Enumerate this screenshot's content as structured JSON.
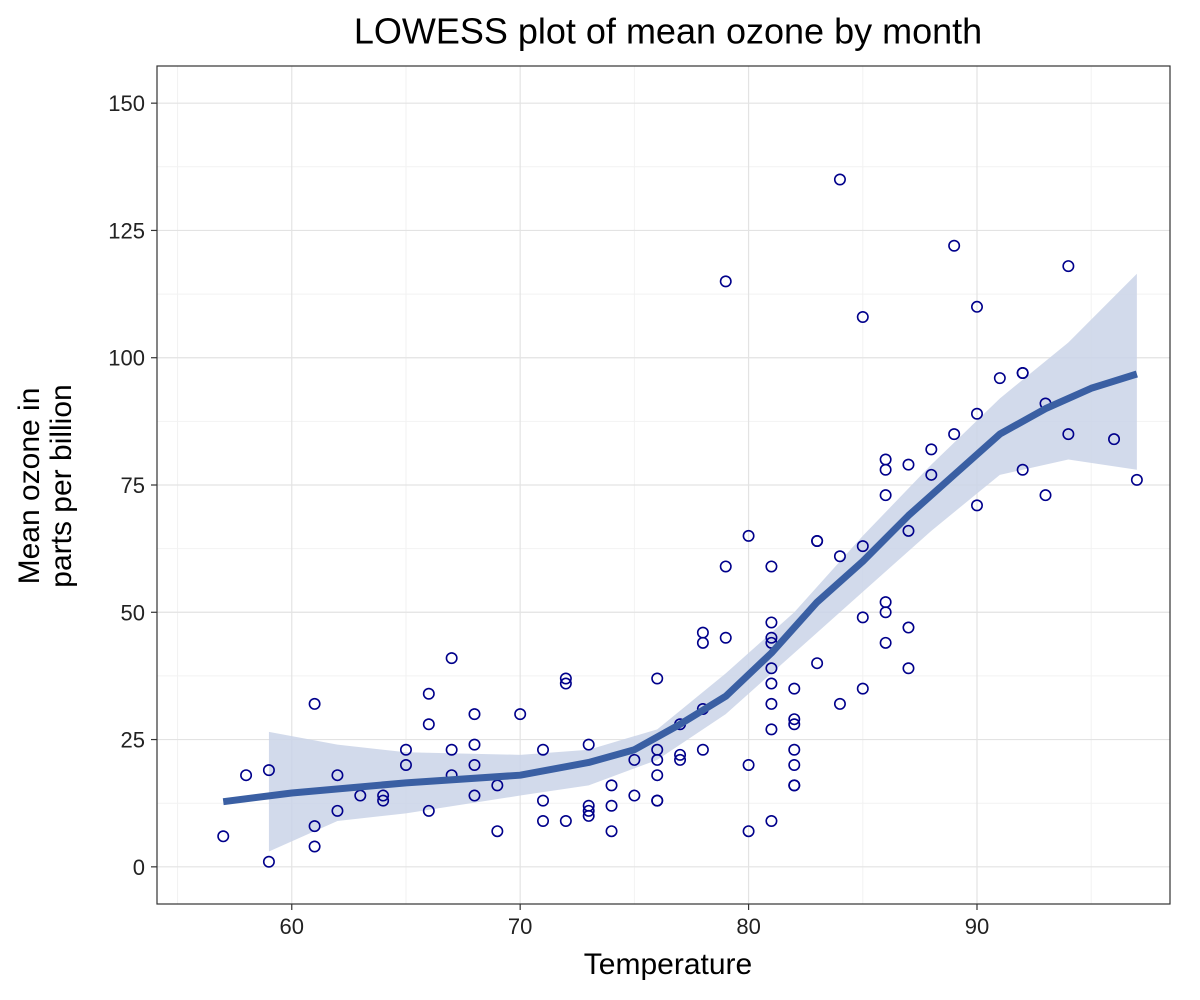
{
  "chart_data": {
    "type": "scatter",
    "title": "LOWESS plot of mean ozone by month",
    "xlabel": "Temperature",
    "ylabel": [
      "Mean ozone in",
      "parts per billion"
    ],
    "xlim": [
      54.1,
      98.45
    ],
    "ylim": [
      -7.3,
      157.3
    ],
    "xticks": [
      60,
      70,
      80,
      90
    ],
    "yticks": [
      0,
      25,
      50,
      75,
      100,
      125,
      150
    ],
    "xminorticks": [
      55,
      65,
      75,
      85,
      95
    ],
    "yminorticks": [
      12.5,
      37.5,
      62.5,
      87.5,
      112.5,
      137.5
    ],
    "grid": true,
    "color": "#00008b",
    "x": [
      57,
      58,
      59,
      59,
      61,
      61,
      61,
      62,
      62,
      63,
      64,
      64,
      65,
      65,
      66,
      66,
      66,
      67,
      67,
      67,
      68,
      68,
      68,
      68,
      69,
      69,
      70,
      71,
      71,
      71,
      72,
      72,
      72,
      73,
      73,
      73,
      73,
      74,
      74,
      74,
      75,
      75,
      76,
      76,
      76,
      76,
      76,
      76,
      77,
      77,
      77,
      78,
      78,
      78,
      78,
      79,
      79,
      79,
      80,
      80,
      80,
      81,
      81,
      81,
      81,
      81,
      81,
      81,
      81,
      81,
      82,
      82,
      82,
      82,
      82,
      82,
      82,
      83,
      83,
      83,
      84,
      84,
      84,
      85,
      85,
      85,
      85,
      86,
      86,
      86,
      86,
      86,
      86,
      87,
      87,
      87,
      87,
      88,
      88,
      89,
      89,
      90,
      90,
      90,
      91,
      92,
      92,
      92,
      93,
      93,
      94,
      94,
      96,
      97
    ],
    "y": [
      6,
      18,
      19,
      1,
      32,
      8,
      4,
      18,
      11,
      14,
      14,
      13,
      23,
      20,
      34,
      28,
      11,
      41,
      23,
      18,
      30,
      24,
      20,
      14,
      16,
      7,
      30,
      23,
      13,
      9,
      37,
      36,
      9,
      24,
      12,
      11,
      10,
      16,
      12,
      7,
      21,
      14,
      37,
      23,
      21,
      18,
      13,
      13,
      28,
      22,
      21,
      46,
      44,
      31,
      23,
      115,
      59,
      45,
      65,
      20,
      7,
      59,
      48,
      45,
      44,
      39,
      36,
      32,
      27,
      9,
      35,
      29,
      28,
      23,
      20,
      16,
      16,
      64,
      64,
      40,
      135,
      61,
      32,
      108,
      63,
      49,
      35,
      80,
      78,
      73,
      52,
      50,
      44,
      79,
      66,
      47,
      39,
      82,
      77,
      122,
      85,
      110,
      89,
      71,
      96,
      97,
      97,
      78,
      91,
      73,
      118,
      85,
      84,
      76
    ],
    "smooth": {
      "color": "#3a5fa3",
      "x": [
        57,
        60,
        65,
        70,
        73,
        75,
        77,
        79,
        81,
        83,
        85,
        87,
        89,
        91,
        93,
        95,
        97
      ],
      "values": [
        12.8,
        14.5,
        16.5,
        18,
        20.5,
        23,
        28,
        33.5,
        42,
        52,
        60,
        69,
        77,
        85,
        90,
        94,
        96.8
      ]
    },
    "band": {
      "color": "#cad3e7",
      "x": [
        59,
        62,
        65,
        70,
        73,
        76,
        79,
        82,
        85,
        88,
        91,
        94,
        97
      ],
      "lower": [
        3,
        9,
        10.5,
        14,
        16,
        21,
        30,
        42,
        54,
        66,
        77,
        80,
        78
      ],
      "upper": [
        26.5,
        24,
        22.5,
        22,
        23,
        27,
        38,
        50,
        65,
        79,
        92,
        103,
        116.5
      ]
    }
  }
}
